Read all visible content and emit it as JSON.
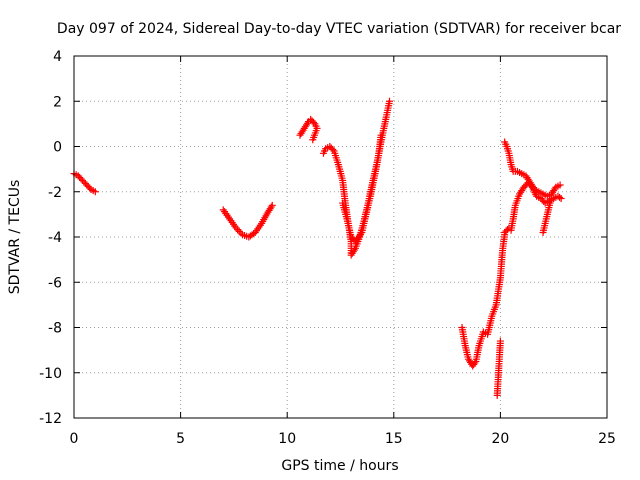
{
  "chart_data": {
    "type": "scatter",
    "title": "Day 097 of 2024, Sidereal Day-to-day VTEC variation (SDTVAR) for receiver bcar",
    "xlabel": "GPS time / hours",
    "ylabel": "SDTVAR / TECUs",
    "xlim": [
      0,
      25
    ],
    "ylim": [
      -12,
      4
    ],
    "xticks": [
      "0",
      "5",
      "10",
      "15",
      "20",
      "25"
    ],
    "yticks": [
      "4",
      "2",
      "0",
      "-2",
      "-4",
      "-6",
      "-8",
      "-10",
      "-12"
    ],
    "grid": true,
    "marker": "+",
    "color": "#ff0000",
    "series": [
      {
        "name": "SDTVAR",
        "segments": [
          [
            [
              0.0,
              -1.2
            ],
            [
              0.2,
              -1.3
            ],
            [
              0.4,
              -1.5
            ],
            [
              0.6,
              -1.7
            ],
            [
              0.8,
              -1.9
            ],
            [
              1.0,
              -2.0
            ]
          ],
          [
            [
              7.0,
              -2.8
            ],
            [
              7.3,
              -3.2
            ],
            [
              7.6,
              -3.6
            ],
            [
              7.9,
              -3.9
            ],
            [
              8.2,
              -4.0
            ],
            [
              8.5,
              -3.8
            ],
            [
              8.8,
              -3.4
            ],
            [
              9.1,
              -2.9
            ],
            [
              9.3,
              -2.6
            ]
          ],
          [
            [
              10.6,
              0.5
            ],
            [
              10.8,
              0.8
            ],
            [
              11.0,
              1.1
            ],
            [
              11.1,
              1.2
            ],
            [
              11.3,
              1.0
            ],
            [
              11.4,
              0.8
            ],
            [
              11.2,
              0.3
            ]
          ],
          [
            [
              11.7,
              -0.3
            ],
            [
              11.8,
              -0.1
            ],
            [
              12.0,
              0.0
            ],
            [
              12.2,
              -0.2
            ],
            [
              12.4,
              -0.8
            ],
            [
              12.6,
              -1.5
            ],
            [
              12.7,
              -2.3
            ],
            [
              12.8,
              -3.0
            ],
            [
              12.9,
              -3.6
            ],
            [
              13.0,
              -4.2
            ],
            [
              13.0,
              -4.8
            ],
            [
              13.2,
              -4.5
            ],
            [
              13.4,
              -4.0
            ],
            [
              13.6,
              -3.3
            ],
            [
              13.8,
              -2.5
            ],
            [
              14.0,
              -1.6
            ],
            [
              14.2,
              -0.8
            ],
            [
              14.4,
              0.2
            ],
            [
              14.6,
              1.1
            ],
            [
              14.8,
              2.0
            ]
          ],
          [
            [
              12.6,
              -2.5
            ],
            [
              12.8,
              -3.2
            ],
            [
              13.0,
              -4.0
            ],
            [
              13.2,
              -4.2
            ],
            [
              13.5,
              -3.8
            ],
            [
              13.7,
              -3.0
            ],
            [
              13.9,
              -2.2
            ],
            [
              14.1,
              -1.3
            ],
            [
              14.3,
              -0.3
            ],
            [
              14.4,
              0.5
            ]
          ],
          [
            [
              18.2,
              -8.0
            ],
            [
              18.35,
              -8.8
            ],
            [
              18.5,
              -9.4
            ],
            [
              18.7,
              -9.7
            ],
            [
              18.85,
              -9.5
            ],
            [
              19.0,
              -8.8
            ],
            [
              19.2,
              -8.2
            ],
            [
              19.4,
              -8.3
            ],
            [
              19.6,
              -7.5
            ],
            [
              19.8,
              -7.0
            ],
            [
              20.0,
              -5.8
            ],
            [
              20.1,
              -4.6
            ],
            [
              20.2,
              -3.9
            ]
          ],
          [
            [
              19.85,
              -11.0
            ],
            [
              19.9,
              -10.2
            ],
            [
              19.95,
              -9.4
            ],
            [
              20.0,
              -8.6
            ]
          ],
          [
            [
              20.2,
              -3.8
            ],
            [
              20.4,
              -3.6
            ],
            [
              20.5,
              -3.7
            ],
            [
              20.6,
              -3.2
            ],
            [
              20.7,
              -2.6
            ],
            [
              20.9,
              -2.1
            ],
            [
              21.1,
              -1.8
            ],
            [
              21.3,
              -1.6
            ],
            [
              21.5,
              -1.8
            ],
            [
              21.7,
              -2.2
            ],
            [
              21.9,
              -2.3
            ],
            [
              22.1,
              -2.5
            ],
            [
              22.3,
              -2.4
            ],
            [
              22.5,
              -2.3
            ],
            [
              22.7,
              -2.2
            ],
            [
              22.85,
              -2.3
            ]
          ],
          [
            [
              20.2,
              0.2
            ],
            [
              20.3,
              0.0
            ],
            [
              20.4,
              -0.3
            ],
            [
              20.5,
              -0.8
            ],
            [
              20.6,
              -1.1
            ],
            [
              20.8,
              -1.1
            ],
            [
              21.0,
              -1.2
            ],
            [
              21.2,
              -1.3
            ],
            [
              21.4,
              -1.6
            ],
            [
              21.6,
              -1.9
            ],
            [
              21.8,
              -2.0
            ],
            [
              22.0,
              -2.1
            ],
            [
              22.2,
              -2.2
            ],
            [
              22.4,
              -2.1
            ],
            [
              22.6,
              -1.8
            ],
            [
              22.8,
              -1.7
            ]
          ],
          [
            [
              22.0,
              -3.8
            ],
            [
              22.1,
              -3.4
            ],
            [
              22.2,
              -3.0
            ],
            [
              22.3,
              -2.6
            ],
            [
              22.4,
              -2.3
            ]
          ]
        ]
      }
    ]
  }
}
